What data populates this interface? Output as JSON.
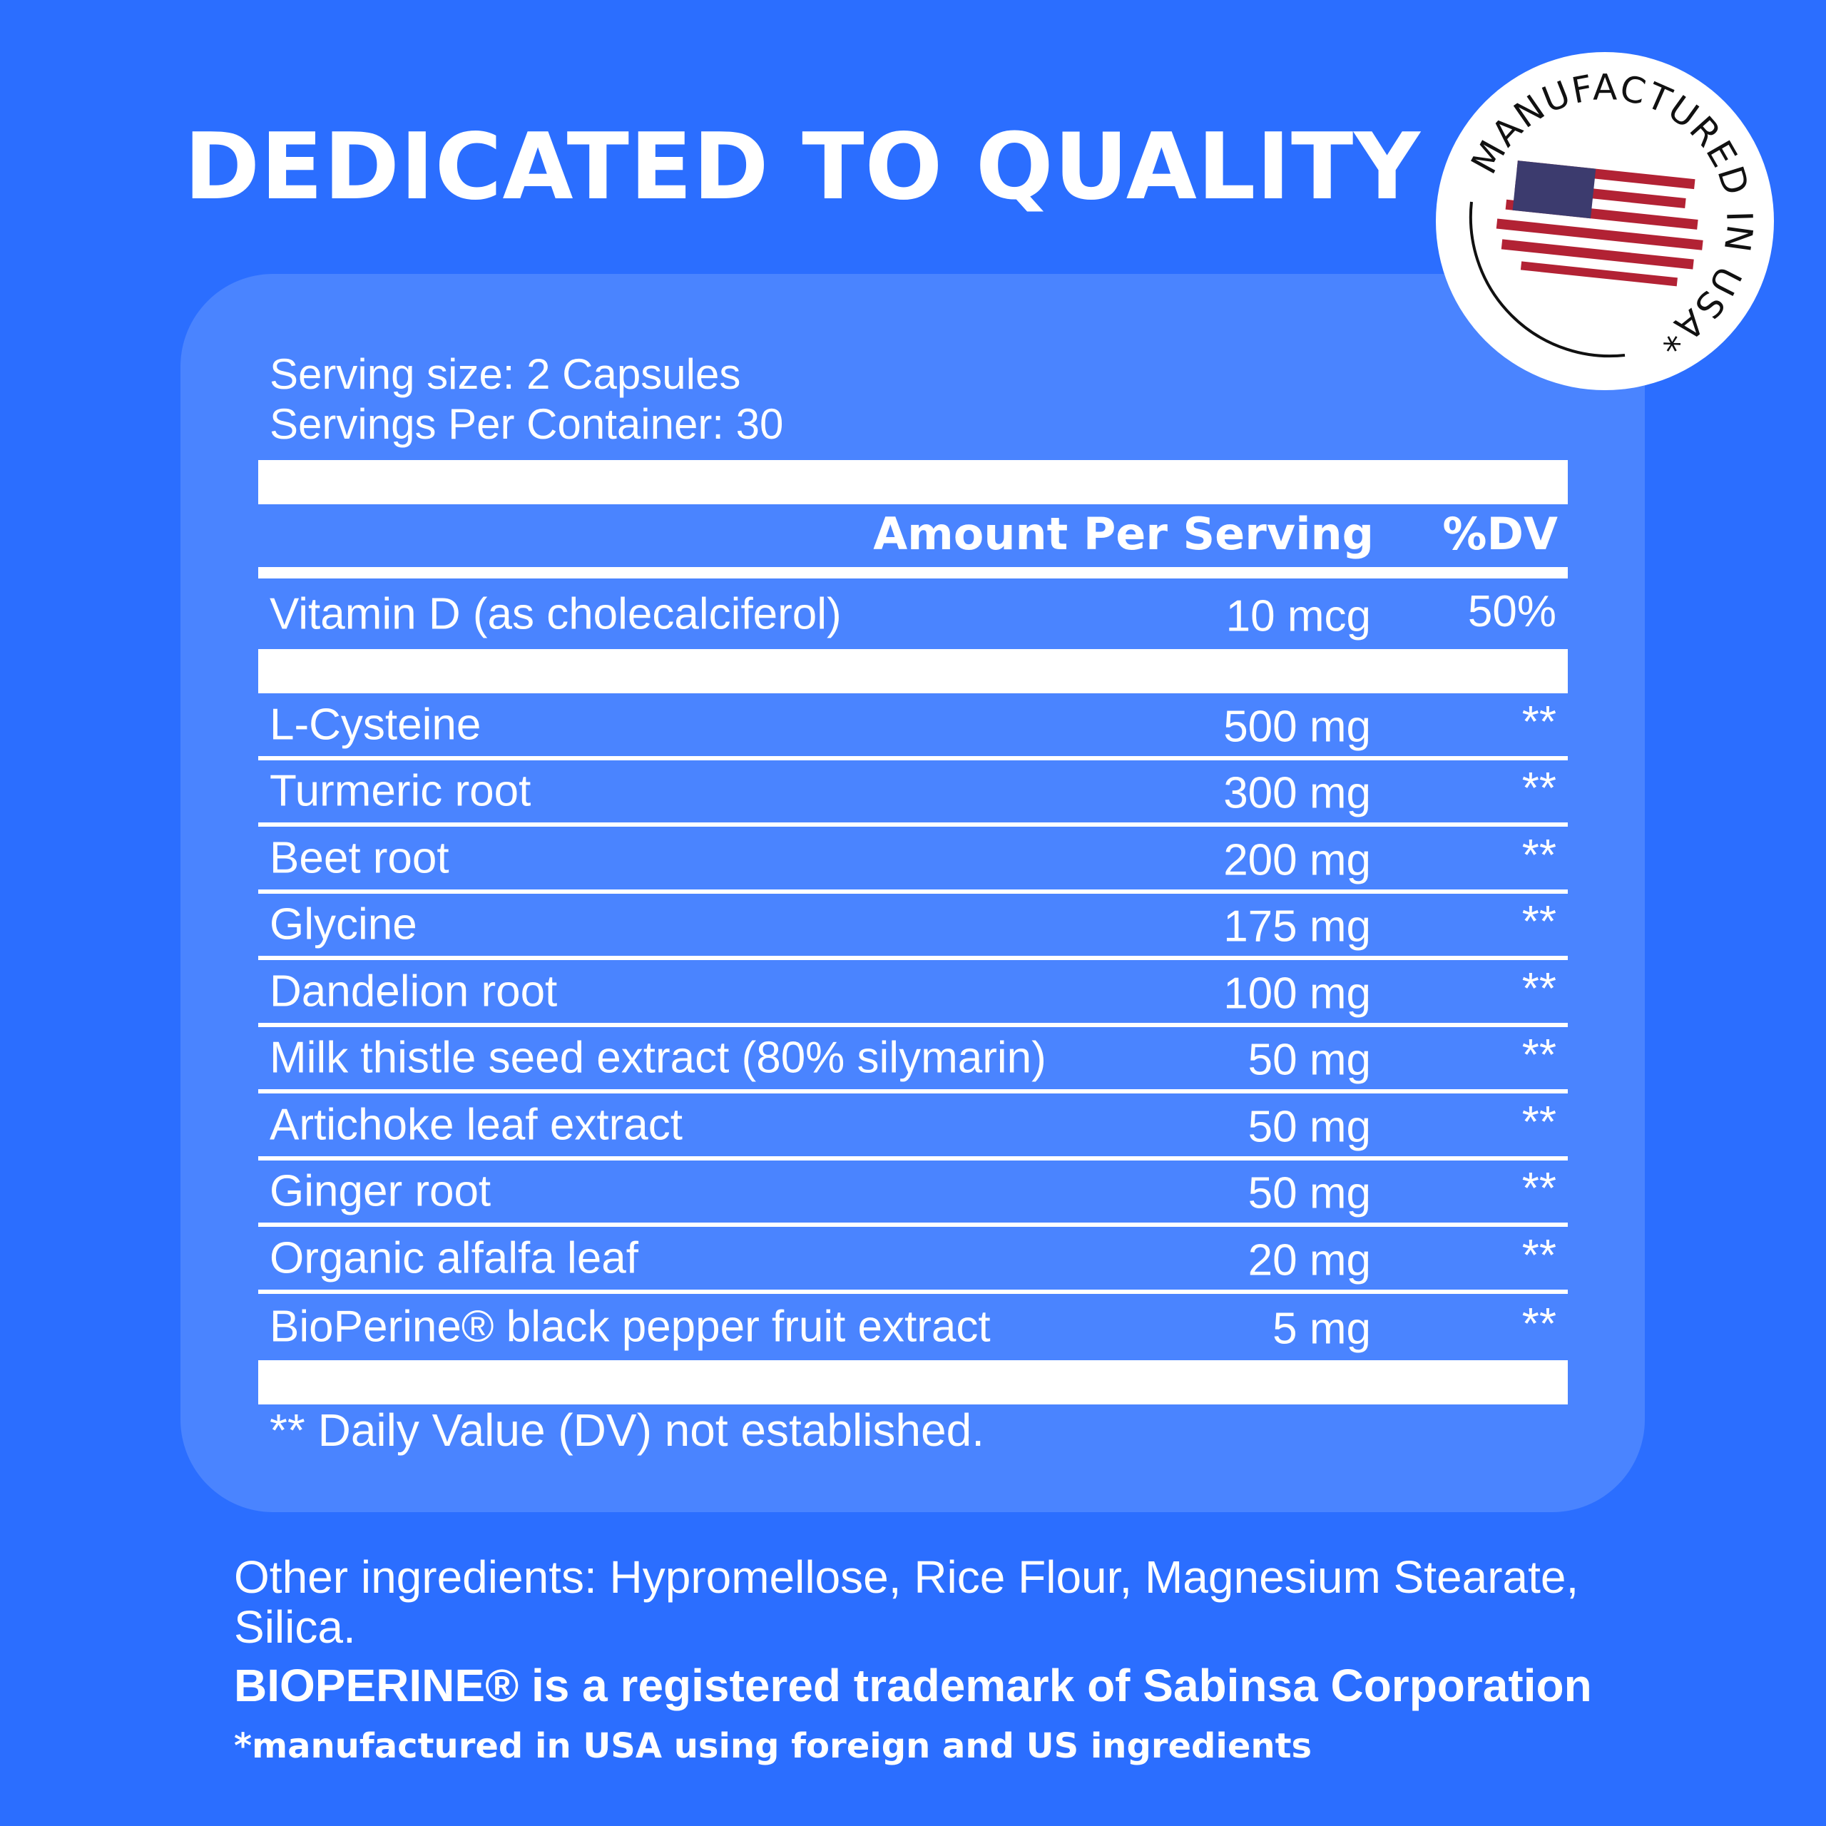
{
  "title": "DEDICATED TO QUALITY",
  "badge": {
    "text": "MANUFACTURED IN USA*",
    "icon": "us-flag-icon"
  },
  "facts": {
    "serving_size": "Serving size: 2 Capsules",
    "servings_per_container": "Servings Per Container: 30",
    "header_amount": "Amount Per Serving",
    "header_dv": "%DV",
    "vitamin": {
      "name": "Vitamin D (as cholecalciferol)",
      "amount": "10 mcg",
      "dv": "50%"
    },
    "ingredients": [
      {
        "name": "L-Cysteine",
        "amount": "500 mg",
        "dv": "**"
      },
      {
        "name": "Turmeric root",
        "amount": "300 mg",
        "dv": "**"
      },
      {
        "name": "Beet root",
        "amount": "200 mg",
        "dv": "**"
      },
      {
        "name": "Glycine",
        "amount": "175 mg",
        "dv": "**"
      },
      {
        "name": "Dandelion root",
        "amount": "100 mg",
        "dv": "**"
      },
      {
        "name": "Milk thistle seed extract (80% silymarin)",
        "amount": "50 mg",
        "dv": "**"
      },
      {
        "name": "Artichoke leaf extract",
        "amount": "50 mg",
        "dv": "**"
      },
      {
        "name": "Ginger root",
        "amount": "50 mg",
        "dv": "**"
      },
      {
        "name": "Organic alfalfa leaf",
        "amount": "20 mg",
        "dv": "**"
      },
      {
        "name": "BioPerine® black pepper fruit extract",
        "amount": "5 mg",
        "dv": "**"
      }
    ],
    "footnote": "** Daily Value (DV) not established."
  },
  "other_ingredients": "Other ingredients: Hypromellose, Rice Flour, Magnesium Stearate, Silica.",
  "trademark": "BIOPERINE® is a registered trademark of Sabinsa Corporation",
  "manufactured_note": "*manufactured in USA using foreign and US ingredients",
  "colors": {
    "background": "#2b6eff",
    "panel": "#4a84ff",
    "flag_red": "#b22234",
    "flag_blue": "#3c3b6e"
  }
}
